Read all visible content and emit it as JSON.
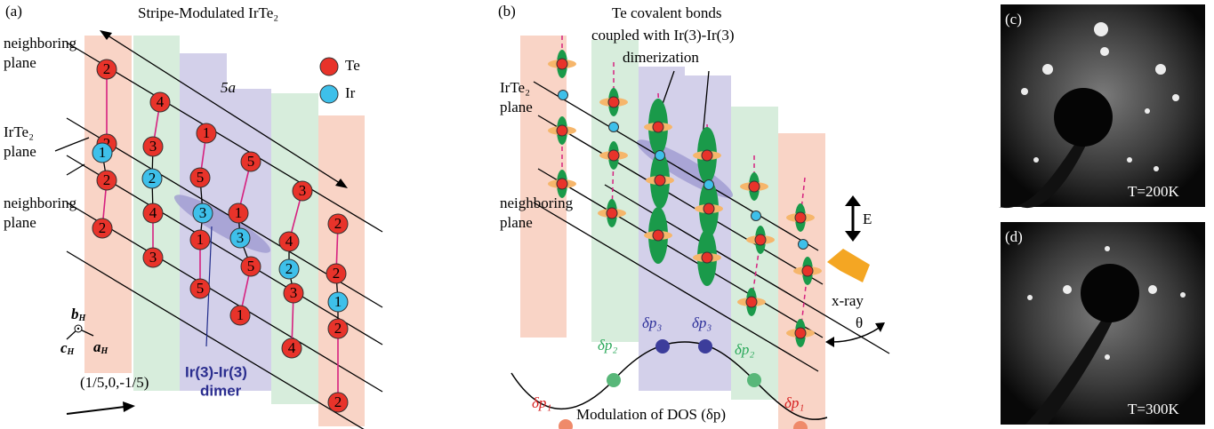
{
  "panel_a": {
    "label": "(a)",
    "title": "Stripe-Modulated IrTe₂",
    "neighboring_plane_top": [
      "neighboring",
      "plane"
    ],
    "irte2_plane": [
      "IrTe₂",
      "plane"
    ],
    "neighboring_plane_bottom": [
      "neighboring",
      "plane"
    ],
    "legend": {
      "te": "Te",
      "ir": "Ir"
    },
    "period": "5a",
    "te_labels": [
      "2",
      "2",
      "2",
      "2",
      "4",
      "3",
      "4",
      "3",
      "1",
      "5",
      "1",
      "5",
      "5",
      "1",
      "5",
      "1",
      "3",
      "4",
      "3",
      "4",
      "2",
      "2",
      "2",
      "2"
    ],
    "ir_labels": [
      "1",
      "2",
      "3",
      "3",
      "2",
      "1"
    ],
    "axes": [
      {
        "letter": "b",
        "sub": "H"
      },
      {
        "letter": "c",
        "sub": "H"
      },
      {
        "letter": "a",
        "sub": "H"
      }
    ],
    "dimer_label": [
      "Ir(3)-Ir(3)",
      "dimer"
    ],
    "vector": "(1/5,0,-1/5)"
  },
  "panel_b": {
    "label": "(b)",
    "title": [
      "Te covalent bonds",
      "coupled with Ir(3)-Ir(3)",
      "dimerization"
    ],
    "irte2_plane": [
      "IrTe₂",
      "plane"
    ],
    "neighboring_plane": [
      "neighboring",
      "plane"
    ],
    "field": "E",
    "beam": "x-ray",
    "angle": "θ",
    "dos_labels": [
      "δp₁",
      "δp₂",
      "δp₃",
      "δp₃",
      "δp₂",
      "δp₁"
    ],
    "caption": "Modulation of DOS (δp)"
  },
  "panel_c": {
    "label": "(c)",
    "temperature": "T=200K"
  },
  "panel_d": {
    "label": "(d)",
    "temperature": "T=300K"
  }
}
